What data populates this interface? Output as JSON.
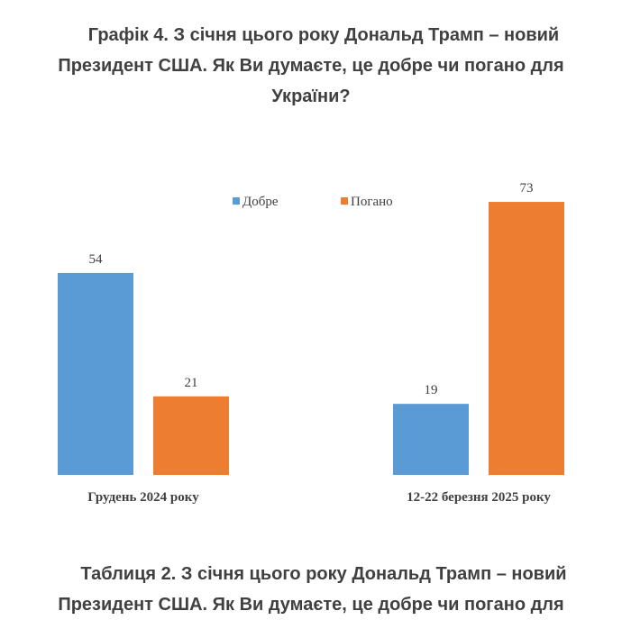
{
  "header": {
    "title_lines": [
      "Графік 4. З січня цього року Дональд Трамп – новий",
      "Президент США. Як Ви думаєте, це добре чи погано для",
      "України?"
    ]
  },
  "footer": {
    "heading_lines": [
      "Таблиця 2. З січня цього року Дональд Трамп – новий",
      "Президент США. Як Ви думаєте, це добре чи погано для"
    ]
  },
  "chart_data": {
    "type": "bar",
    "title": "Графік 4. З січня цього року Дональд Трамп – новий Президент США. Як Ви думаєте, це добре чи погано для України?",
    "categories": [
      "Грудень 2024 року",
      "12-22 березня 2025 року"
    ],
    "series": [
      {
        "name": "Добре",
        "values": [
          54,
          19
        ],
        "color": "#5B9BD5"
      },
      {
        "name": "Погано",
        "values": [
          21,
          73
        ],
        "color": "#ED7D31"
      }
    ],
    "ylim": [
      0,
      80
    ],
    "grid": false,
    "legend": "top-center",
    "data_labels": true
  }
}
